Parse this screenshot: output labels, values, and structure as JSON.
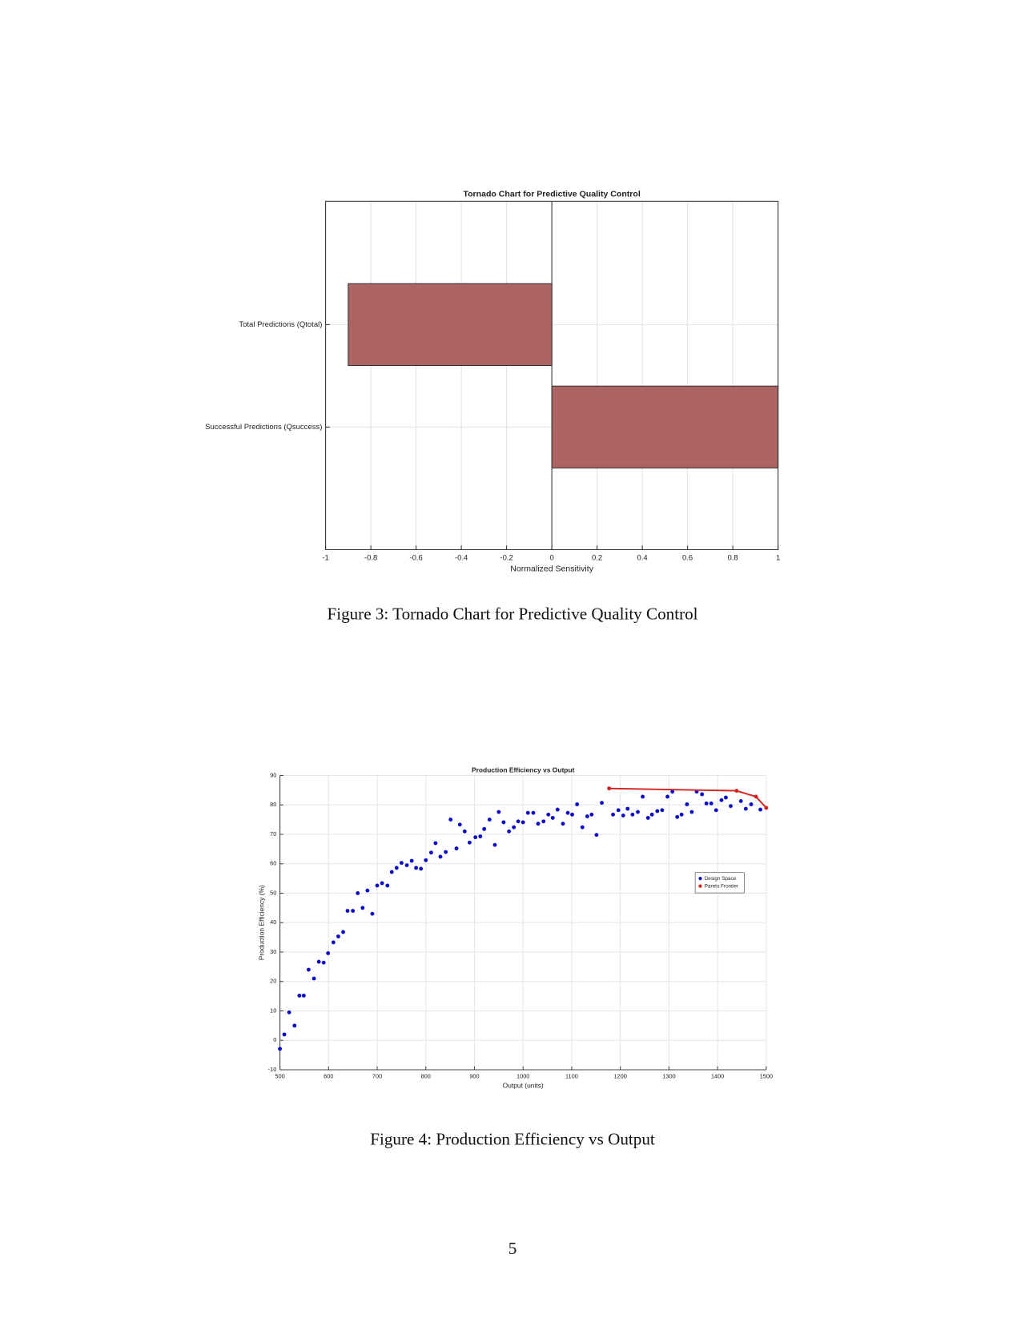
{
  "chart_data": [
    {
      "type": "bar",
      "orientation": "horizontal",
      "title": "Tornado Chart for Predictive Quality Control",
      "categories": [
        "Total Predictions (Qtotal)",
        "Successful Predictions (Qsuccess)"
      ],
      "values": [
        -0.9,
        1
      ],
      "color": "#ad6563",
      "xlabel": "Normalized Sensitivity",
      "xlim": [
        -1,
        1
      ],
      "xticks": [
        -1,
        -0.8,
        -0.6,
        -0.4,
        -0.2,
        0,
        0.2,
        0.4,
        0.6,
        0.8,
        1
      ],
      "grid": true
    },
    {
      "type": "scatter",
      "title": "Production Efficiency vs Output",
      "xlabel": "Output (units)",
      "ylabel": "Production Efficiency (%)",
      "xlim": [
        500,
        1500
      ],
      "xticks": [
        500,
        600,
        700,
        800,
        900,
        1000,
        1100,
        1200,
        1300,
        1400,
        1500
      ],
      "ylim": [
        -10,
        90
      ],
      "yticks": [
        -10,
        0,
        10,
        20,
        30,
        40,
        50,
        60,
        70,
        80,
        90
      ],
      "grid": true,
      "legend": "right",
      "series": [
        {
          "name": "Design Space",
          "color": "#0a0acc",
          "line": false,
          "x": [
            500,
            509,
            519,
            530,
            540,
            549,
            559,
            570,
            580,
            590,
            599,
            610,
            620,
            630,
            639,
            650,
            660,
            670,
            680,
            690,
            700,
            710,
            721,
            730,
            740,
            750,
            761,
            771,
            780,
            790,
            800,
            811,
            820,
            830,
            841,
            851,
            863,
            870,
            880,
            890,
            902,
            912,
            920,
            931,
            942,
            950,
            960,
            971,
            981,
            990,
            1000,
            1010,
            1021,
            1031,
            1042,
            1052,
            1061,
            1071,
            1082,
            1092,
            1101,
            1111,
            1122,
            1132,
            1141,
            1151,
            1162,
            1185,
            1196,
            1206,
            1215,
            1225,
            1236,
            1246,
            1257,
            1265,
            1276,
            1286,
            1297,
            1307,
            1317,
            1326,
            1337,
            1347,
            1357,
            1368,
            1377,
            1387,
            1397,
            1408,
            1417,
            1427,
            1448,
            1458,
            1469,
            1488
          ],
          "values": [
            -2.9,
            2,
            9.5,
            5,
            15.2,
            15.2,
            24,
            21,
            26.7,
            26.4,
            29.6,
            33.3,
            35.3,
            36.8,
            44,
            44,
            50,
            45,
            50.9,
            43,
            52.6,
            53.4,
            52.6,
            57.2,
            58.6,
            60.3,
            59.5,
            61,
            58.6,
            58.3,
            61.2,
            63.8,
            67,
            62.4,
            64,
            75,
            65.2,
            73.3,
            71,
            67.2,
            69,
            69.3,
            71.8,
            75,
            66.4,
            77.6,
            74.1,
            71,
            72.4,
            74.4,
            74.1,
            77.3,
            77.3,
            73.6,
            74.4,
            76.7,
            75.6,
            78.4,
            73.6,
            77.3,
            76.7,
            80.2,
            72.4,
            76.1,
            76.7,
            69.8,
            80.7,
            76.7,
            78.2,
            76.4,
            78.7,
            76.7,
            77.6,
            82.8,
            75.6,
            76.7,
            77.9,
            78.2,
            82.8,
            84.5,
            75.9,
            76.7,
            80.2,
            77.6,
            84.5,
            83.6,
            80.5,
            80.5,
            78.2,
            81.6,
            82.5,
            79.6,
            81.3,
            78.7,
            80.2,
            78.4
          ]
        },
        {
          "name": "Pareto Frontier",
          "color": "#d42020",
          "line": true,
          "x": [
            1177,
            1439,
            1479,
            1500
          ],
          "values": [
            85.6,
            84.8,
            82.8,
            79
          ]
        }
      ]
    }
  ],
  "captions": [
    "Figure 3: Tornado Chart for Predictive Quality Control",
    "Figure 4: Production Efficiency vs Output"
  ],
  "page_number": "5"
}
